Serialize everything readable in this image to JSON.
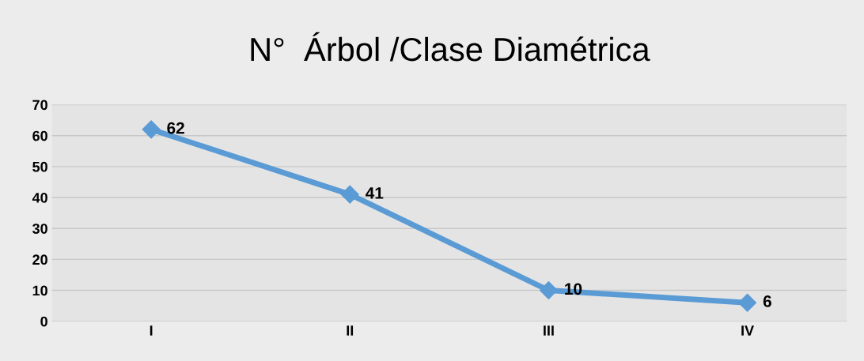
{
  "chart_data": {
    "type": "line",
    "title": "N°  Árbol /Clase Diamétrica",
    "categories": [
      "I",
      "II",
      "III",
      "IV"
    ],
    "series": [
      {
        "color": "#5b9bd5",
        "values": [
          62,
          41,
          10,
          6
        ]
      }
    ],
    "ylim": [
      0,
      70
    ],
    "yticks": [
      0,
      10,
      20,
      30,
      40,
      50,
      60,
      70
    ],
    "grid": "y",
    "marker": "diamond",
    "line_style": "solid",
    "data_labels": true,
    "legend": false
  }
}
